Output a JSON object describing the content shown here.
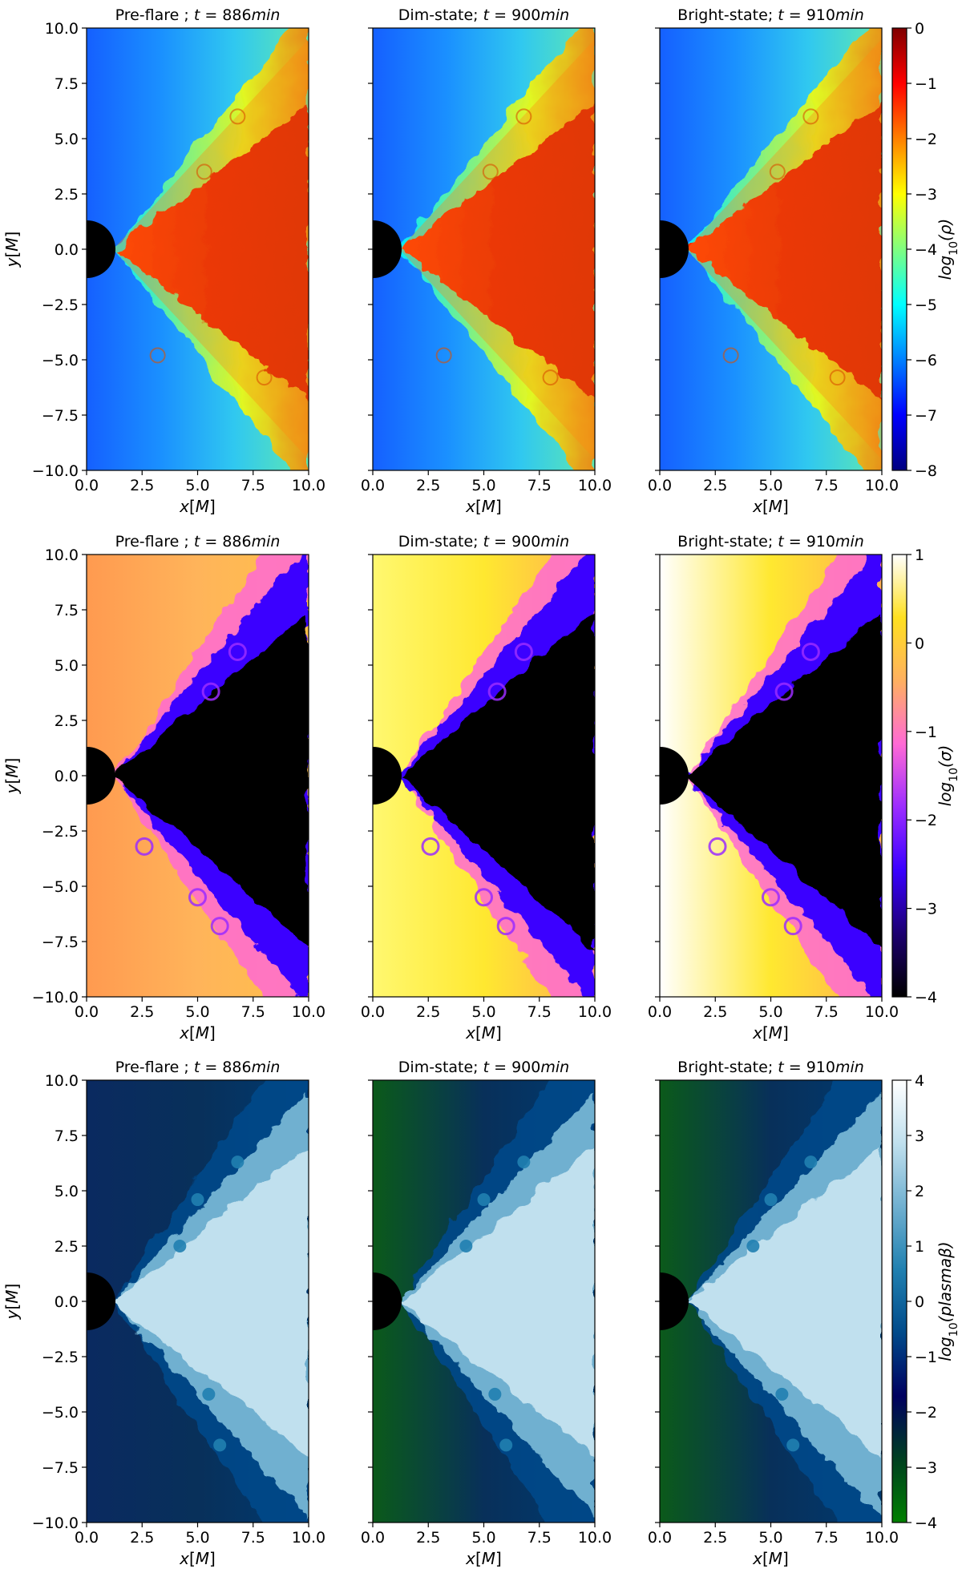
{
  "chart_data": {
    "type": "heatmap",
    "layout": "3 rows x 3 columns; one shared colorbar per row at right",
    "grid": false,
    "columns": [
      {
        "title_plain": "Pre-flare ; ",
        "title_var": "t",
        "title_eq": " = 886",
        "title_unit": "min",
        "t_min": 886
      },
      {
        "title_plain": "Dim-state; ",
        "title_var": "t",
        "title_eq": " = 900",
        "title_unit": "min",
        "t_min": 900
      },
      {
        "title_plain": "Bright-state; ",
        "title_var": "t",
        "title_eq": " = 910",
        "title_unit": "min",
        "t_min": 910
      }
    ],
    "xlabel": "x[M]",
    "ylabel": "y[M]",
    "xlim": [
      0.0,
      10.0
    ],
    "ylim": [
      -10.0,
      10.0
    ],
    "x_ticks": [
      "0.0",
      "2.5",
      "5.0",
      "7.5",
      "10.0"
    ],
    "y_ticks": [
      "10.0",
      "7.5",
      "5.0",
      "2.5",
      "0.0",
      "−2.5",
      "−5.0",
      "−7.5",
      "−10.0"
    ],
    "black_hole": {
      "center": [
        0.0,
        0.0
      ],
      "fill": "#000000"
    },
    "rows": [
      {
        "quantity": "density",
        "colorbar_label": "log10(ρ)",
        "cb_prefix": "log",
        "cb_sub": "10",
        "cb_arg": "(ρ)",
        "colormap": "jet",
        "clim": [
          -8,
          0
        ],
        "cb_ticks": [
          "0",
          "−1",
          "−2",
          "−3",
          "−4",
          "−5",
          "−6",
          "−7",
          "−8"
        ],
        "colors": {
          "low": "#00008f",
          "mid": "#2aa8ff",
          "high": "#c81400",
          "jet_stops": [
            "#00007f",
            "#0000ff",
            "#0080ff",
            "#00ffff",
            "#80ff80",
            "#ffff00",
            "#ff8000",
            "#ff0000",
            "#7f0000"
          ]
        }
      },
      {
        "quantity": "magnetization",
        "colorbar_label": "log10(σ)",
        "cb_prefix": "log",
        "cb_sub": "10",
        "cb_arg": "(σ)",
        "colormap": "gnuplot2",
        "clim": [
          -4,
          1
        ],
        "cb_ticks": [
          "1",
          "0",
          "−1",
          "−2",
          "−3",
          "−4"
        ],
        "colors": {
          "gnuplot2_stops": [
            "#000000",
            "#1c0070",
            "#3a00ff",
            "#9b2cff",
            "#ff6ad5",
            "#ffb060",
            "#ffe020",
            "#ffffff"
          ]
        }
      },
      {
        "quantity": "plasma beta",
        "colorbar_label": "log10(plasmaβ)",
        "cb_prefix": "log",
        "cb_sub": "10",
        "cb_arg": "(plasmaβ)",
        "colormap": "ocean",
        "clim": [
          -4,
          4
        ],
        "cb_ticks": [
          "4",
          "3",
          "2",
          "1",
          "0",
          "−1",
          "−2",
          "−3",
          "−4"
        ],
        "colors": {
          "ocean_stops": [
            "#008000",
            "#004020",
            "#000060",
            "#004a8a",
            "#2080b0",
            "#70b0d0",
            "#c0e0ee",
            "#ffffff"
          ]
        }
      }
    ]
  }
}
